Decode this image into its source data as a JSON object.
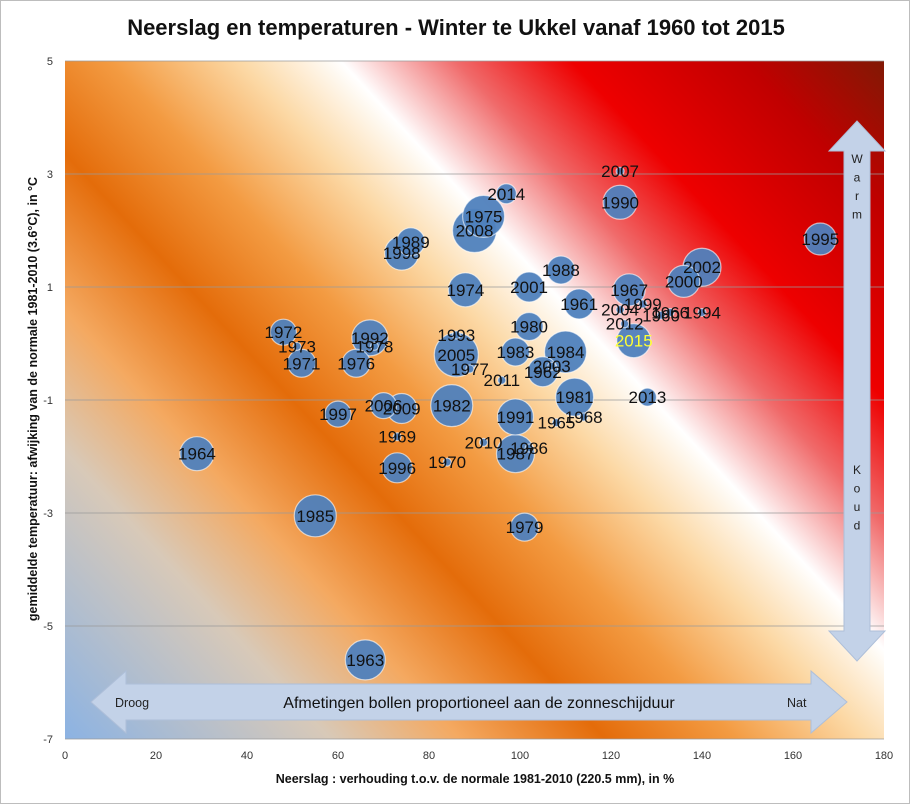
{
  "chart_data": {
    "type": "scatter",
    "subtype": "bubble",
    "title": "Neerslag en temperaturen - Winter te Ukkel vanaf 1960 tot 2015",
    "xlabel": "Neerslag : verhouding t.o.v. de normale 1981-2010 (220.5 mm), in %",
    "ylabel": "gemiddelde temperatuur: afwijking van de normale 1981-2010 (3.6°C), in °C",
    "xlim": [
      0,
      180
    ],
    "ylim": [
      -7,
      5
    ],
    "x_ticks": [
      "0",
      "20",
      "40",
      "60",
      "80",
      "100",
      "120",
      "140",
      "160",
      "180"
    ],
    "y_ticks": [
      "5",
      "3",
      "1",
      "-1",
      "-3",
      "-5",
      "-7"
    ],
    "grid": "horizontal",
    "bubble_color": "#4f81bd",
    "highlight_color": "#ffff33",
    "highlight_year": "2015",
    "horizontal_arrow": {
      "left": "Droog",
      "center": "Afmetingen bollen proportioneel aan de zonneschijduur",
      "right": "Nat"
    },
    "vertical_arrow": {
      "top": "Warm",
      "bottom": "Koud"
    },
    "points": [
      {
        "year": "1960",
        "x": 131.0,
        "y": 0.5,
        "r": 4
      },
      {
        "year": "1961",
        "x": 113.0,
        "y": 0.7,
        "r": 15
      },
      {
        "year": "1962",
        "x": 105.0,
        "y": -0.5,
        "r": 15
      },
      {
        "year": "1963",
        "x": 66.0,
        "y": -5.6,
        "r": 20
      },
      {
        "year": "1964",
        "x": 29.0,
        "y": -1.95,
        "r": 17
      },
      {
        "year": "1965",
        "x": 108.0,
        "y": -1.4,
        "r": 4
      },
      {
        "year": "1966",
        "x": 133.0,
        "y": 0.55,
        "r": 4
      },
      {
        "year": "1967",
        "x": 124.0,
        "y": 0.95,
        "r": 16
      },
      {
        "year": "1968",
        "x": 114.0,
        "y": -1.3,
        "r": 4
      },
      {
        "year": "1969",
        "x": 73.0,
        "y": -1.65,
        "r": 4
      },
      {
        "year": "1970",
        "x": 84.0,
        "y": -2.1,
        "r": 4
      },
      {
        "year": "1971",
        "x": 52.0,
        "y": -0.35,
        "r": 14
      },
      {
        "year": "1972",
        "x": 48.0,
        "y": 0.2,
        "r": 13
      },
      {
        "year": "1973",
        "x": 51.0,
        "y": -0.05,
        "r": 4
      },
      {
        "year": "1974",
        "x": 88.0,
        "y": 0.95,
        "r": 17
      },
      {
        "year": "1975",
        "x": 92.0,
        "y": 2.25,
        "r": 21
      },
      {
        "year": "1976",
        "x": 64.0,
        "y": -0.35,
        "r": 14
      },
      {
        "year": "1977",
        "x": 89.0,
        "y": -0.45,
        "r": 4
      },
      {
        "year": "1978",
        "x": 68.0,
        "y": -0.05,
        "r": 4
      },
      {
        "year": "1979",
        "x": 101.0,
        "y": -3.25,
        "r": 14
      },
      {
        "year": "1980",
        "x": 102.0,
        "y": 0.3,
        "r": 14
      },
      {
        "year": "1981",
        "x": 112.0,
        "y": -0.95,
        "r": 19
      },
      {
        "year": "1982",
        "x": 85.0,
        "y": -1.1,
        "r": 21
      },
      {
        "year": "1983",
        "x": 99.0,
        "y": -0.15,
        "r": 14
      },
      {
        "year": "1984",
        "x": 110.0,
        "y": -0.15,
        "r": 21
      },
      {
        "year": "1985",
        "x": 55.0,
        "y": -3.05,
        "r": 21
      },
      {
        "year": "1986",
        "x": 102.0,
        "y": -1.85,
        "r": 4
      },
      {
        "year": "1987",
        "x": 99.0,
        "y": -1.95,
        "r": 19
      },
      {
        "year": "1988",
        "x": 109.0,
        "y": 1.3,
        "r": 14
      },
      {
        "year": "1989",
        "x": 76.0,
        "y": 1.8,
        "r": 14
      },
      {
        "year": "1990",
        "x": 122.0,
        "y": 2.5,
        "r": 17
      },
      {
        "year": "1991",
        "x": 99.0,
        "y": -1.3,
        "r": 18
      },
      {
        "year": "1992",
        "x": 67.0,
        "y": 0.1,
        "r": 18
      },
      {
        "year": "1993",
        "x": 86.0,
        "y": 0.15,
        "r": 4
      },
      {
        "year": "1994",
        "x": 140.0,
        "y": 0.55,
        "r": 4
      },
      {
        "year": "1995",
        "x": 166.0,
        "y": 1.85,
        "r": 16
      },
      {
        "year": "1996",
        "x": 73.0,
        "y": -2.2,
        "r": 15
      },
      {
        "year": "1997",
        "x": 60.0,
        "y": -1.25,
        "r": 13
      },
      {
        "year": "1998",
        "x": 74.0,
        "y": 1.6,
        "r": 17
      },
      {
        "year": "1999",
        "x": 127.0,
        "y": 0.7,
        "r": 4
      },
      {
        "year": "2000",
        "x": 136.0,
        "y": 1.1,
        "r": 16
      },
      {
        "year": "2001",
        "x": 102.0,
        "y": 1.0,
        "r": 15
      },
      {
        "year": "2002",
        "x": 140.0,
        "y": 1.35,
        "r": 19
      },
      {
        "year": "2003",
        "x": 107.0,
        "y": -0.4,
        "r": 4
      },
      {
        "year": "2004",
        "x": 122.0,
        "y": 0.6,
        "r": 4
      },
      {
        "year": "2005",
        "x": 86.0,
        "y": -0.2,
        "r": 22
      },
      {
        "year": "2006",
        "x": 70.0,
        "y": -1.1,
        "r": 13
      },
      {
        "year": "2007",
        "x": 122.0,
        "y": 3.05,
        "r": 4
      },
      {
        "year": "2008",
        "x": 90.0,
        "y": 2.0,
        "r": 22
      },
      {
        "year": "2009",
        "x": 74.0,
        "y": -1.15,
        "r": 15
      },
      {
        "year": "2010",
        "x": 92.0,
        "y": -1.75,
        "r": 4
      },
      {
        "year": "2011",
        "x": 96.0,
        "y": -0.65,
        "r": 4
      },
      {
        "year": "2012",
        "x": 123.0,
        "y": 0.35,
        "r": 4
      },
      {
        "year": "2013",
        "x": 128.0,
        "y": -0.95,
        "r": 9
      },
      {
        "year": "2014",
        "x": 97.0,
        "y": 2.65,
        "r": 10
      },
      {
        "year": "2015",
        "x": 125.0,
        "y": 0.05,
        "r": 17
      }
    ]
  }
}
